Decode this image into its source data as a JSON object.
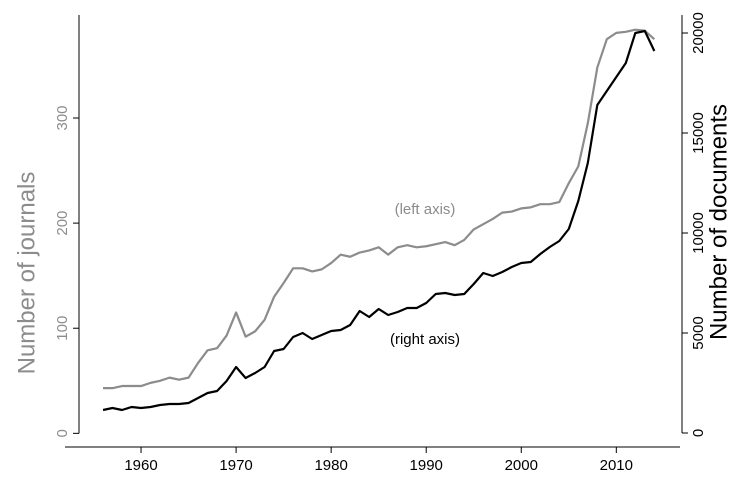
{
  "chart_data": {
    "type": "line",
    "y_label": "Number of journals",
    "y2_label": "Number of documents",
    "annotations": [
      "(left axis)",
      "(right axis)"
    ],
    "x": [
      1956,
      1957,
      1958,
      1959,
      1960,
      1961,
      1962,
      1963,
      1964,
      1965,
      1966,
      1967,
      1968,
      1969,
      1970,
      1971,
      1972,
      1973,
      1974,
      1975,
      1976,
      1977,
      1978,
      1979,
      1980,
      1981,
      1982,
      1983,
      1984,
      1985,
      1986,
      1987,
      1988,
      1989,
      1990,
      1991,
      1992,
      1993,
      1994,
      1995,
      1996,
      1997,
      1998,
      1999,
      2000,
      2001,
      2002,
      2003,
      2004,
      2005,
      2006,
      2007,
      2008,
      2009,
      2010,
      2011,
      2012,
      2013,
      2014
    ],
    "series": [
      {
        "color": "#8c8c8c",
        "axis": "y",
        "values": [
          43,
          43,
          45,
          45,
          45,
          48,
          50,
          53,
          51,
          53,
          67,
          79,
          81,
          93,
          115,
          92,
          97,
          108,
          130,
          143,
          157,
          157,
          154,
          156,
          162,
          170,
          168,
          172,
          174,
          177,
          170,
          177,
          179,
          177,
          178,
          180,
          182,
          179,
          184,
          194,
          199,
          204,
          210,
          211,
          214,
          215,
          218,
          218,
          220,
          238,
          254,
          295,
          348,
          375,
          381,
          382,
          384,
          383,
          375
        ]
      },
      {
        "color": "#000000",
        "axis": "y2",
        "values": [
          1150,
          1250,
          1150,
          1300,
          1250,
          1300,
          1400,
          1450,
          1450,
          1500,
          1750,
          2000,
          2100,
          2600,
          3300,
          2750,
          3000,
          3300,
          4100,
          4200,
          4800,
          5000,
          4700,
          4900,
          5100,
          5150,
          5400,
          6100,
          5800,
          6200,
          5900,
          6050,
          6250,
          6250,
          6500,
          6950,
          7000,
          6900,
          6950,
          7450,
          8000,
          7850,
          8050,
          8300,
          8500,
          8550,
          8950,
          9300,
          9600,
          10200,
          11600,
          13500,
          16400,
          17100,
          17800,
          18500,
          20000,
          20100,
          19100
        ]
      }
    ],
    "xlim": [
      1952,
      2016.7
    ],
    "xticks": [
      1960,
      1970,
      1980,
      1990,
      2000,
      2010
    ],
    "ylim": [
      -13,
      398
    ],
    "yticks": [
      0,
      100,
      200,
      300
    ],
    "y2lim": [
      -700,
      20900
    ],
    "y2ticks": [
      0,
      5000,
      10000,
      15000,
      20000
    ],
    "y_color": "#8c8c8c",
    "y2_color": "#000000",
    "grid": false
  }
}
